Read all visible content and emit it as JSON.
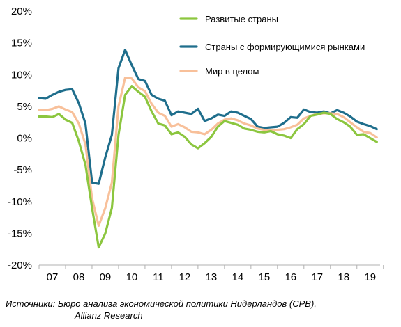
{
  "chart_data": {
    "type": "line",
    "title": "",
    "xlabel": "",
    "ylabel": "",
    "x_tick_labels": [
      "07",
      "08",
      "09",
      "10",
      "11",
      "12",
      "13",
      "14",
      "15",
      "16",
      "17",
      "18",
      "19"
    ],
    "y_tick_labels": [
      "20%",
      "15%",
      "10%",
      "5%",
      "0%",
      "-5%",
      "-10%",
      "-15%",
      "-20%"
    ],
    "ylim": [
      -20,
      20
    ],
    "y_ticks": [
      20,
      15,
      10,
      5,
      0,
      -5,
      -10,
      -15,
      -20
    ],
    "x_range": [
      2007.0,
      2019.875
    ],
    "grid": false,
    "legend_position": "top-right",
    "series": [
      {
        "name": "Развитые страны",
        "color": "#8cc63f",
        "x": [
          2007.0,
          2007.25,
          2007.5,
          2007.75,
          2008.0,
          2008.25,
          2008.5,
          2008.75,
          2009.0,
          2009.25,
          2009.5,
          2009.75,
          2010.0,
          2010.25,
          2010.5,
          2010.75,
          2011.0,
          2011.25,
          2011.5,
          2011.75,
          2012.0,
          2012.25,
          2012.5,
          2012.75,
          2013.0,
          2013.25,
          2013.5,
          2013.75,
          2014.0,
          2014.25,
          2014.5,
          2014.75,
          2015.0,
          2015.25,
          2015.5,
          2015.75,
          2016.0,
          2016.25,
          2016.5,
          2016.75,
          2017.0,
          2017.25,
          2017.5,
          2017.75,
          2018.0,
          2018.25,
          2018.5,
          2018.75,
          2019.0,
          2019.25,
          2019.5,
          2019.75
        ],
        "values": [
          3.4,
          3.4,
          3.3,
          3.8,
          2.9,
          2.4,
          -0.5,
          -4.2,
          -11.0,
          -17.2,
          -15.0,
          -11.0,
          0.5,
          6.8,
          8.2,
          7.3,
          6.5,
          4.2,
          2.3,
          2.0,
          0.6,
          0.9,
          0.2,
          -1.0,
          -1.6,
          -0.8,
          0.2,
          1.8,
          2.7,
          2.4,
          2.1,
          1.5,
          1.3,
          1.0,
          0.9,
          1.1,
          0.6,
          0.4,
          0.0,
          1.4,
          2.2,
          3.5,
          3.7,
          4.0,
          3.8,
          3.0,
          2.5,
          1.8,
          0.5,
          0.6,
          0.0,
          -0.6
        ]
      },
      {
        "name": "Страны с формирующимися рынками",
        "color": "#1f6e8c",
        "x": [
          2007.0,
          2007.25,
          2007.5,
          2007.75,
          2008.0,
          2008.25,
          2008.5,
          2008.75,
          2009.0,
          2009.25,
          2009.5,
          2009.75,
          2010.0,
          2010.25,
          2010.5,
          2010.75,
          2011.0,
          2011.25,
          2011.5,
          2011.75,
          2012.0,
          2012.25,
          2012.5,
          2012.75,
          2013.0,
          2013.25,
          2013.5,
          2013.75,
          2014.0,
          2014.25,
          2014.5,
          2014.75,
          2015.0,
          2015.25,
          2015.5,
          2015.75,
          2016.0,
          2016.25,
          2016.5,
          2016.75,
          2017.0,
          2017.25,
          2017.5,
          2017.75,
          2018.0,
          2018.25,
          2018.5,
          2018.75,
          2019.0,
          2019.25,
          2019.5,
          2019.75
        ],
        "values": [
          6.3,
          6.2,
          6.8,
          7.3,
          7.6,
          7.7,
          5.5,
          2.3,
          -7.0,
          -7.2,
          -3.0,
          0.5,
          11.0,
          13.9,
          11.5,
          9.3,
          9.0,
          6.8,
          6.2,
          5.9,
          3.6,
          4.2,
          4.0,
          3.8,
          4.6,
          2.7,
          3.1,
          3.7,
          3.5,
          4.2,
          4.0,
          3.5,
          3.0,
          1.8,
          1.6,
          1.7,
          1.8,
          2.4,
          3.3,
          3.2,
          4.5,
          4.1,
          4.0,
          4.2,
          3.9,
          4.4,
          4.0,
          3.4,
          2.6,
          2.2,
          1.9,
          1.4
        ]
      },
      {
        "name": "Мир в целом",
        "color": "#f8c09a",
        "x": [
          2007.0,
          2007.25,
          2007.5,
          2007.75,
          2008.0,
          2008.25,
          2008.5,
          2008.75,
          2009.0,
          2009.25,
          2009.5,
          2009.75,
          2010.0,
          2010.25,
          2010.5,
          2010.75,
          2011.0,
          2011.25,
          2011.5,
          2011.75,
          2012.0,
          2012.25,
          2012.5,
          2012.75,
          2013.0,
          2013.25,
          2013.5,
          2013.75,
          2014.0,
          2014.25,
          2014.5,
          2014.75,
          2015.0,
          2015.25,
          2015.5,
          2015.75,
          2016.0,
          2016.25,
          2016.5,
          2016.75,
          2017.0,
          2017.25,
          2017.5,
          2017.75,
          2018.0,
          2018.25,
          2018.5,
          2018.75,
          2019.0,
          2019.25,
          2019.5,
          2019.75
        ],
        "values": [
          4.4,
          4.4,
          4.6,
          5.0,
          4.5,
          4.1,
          2.3,
          -1.0,
          -9.5,
          -13.8,
          -11.0,
          -7.0,
          5.0,
          9.5,
          9.4,
          8.0,
          7.4,
          5.4,
          4.0,
          3.5,
          1.8,
          2.2,
          1.7,
          1.0,
          0.9,
          0.6,
          1.3,
          2.3,
          2.9,
          3.1,
          2.8,
          2.3,
          2.0,
          1.5,
          1.3,
          1.3,
          1.3,
          1.4,
          1.7,
          2.1,
          3.1,
          3.5,
          3.8,
          3.9,
          3.9,
          3.8,
          3.3,
          2.5,
          1.7,
          1.0,
          0.8,
          0.1
        ]
      }
    ]
  },
  "footer": {
    "source_line1": "Источники: Бюро анализа экономической политики Нидерландов (CPB),",
    "source_line2": "Allianz Research"
  }
}
